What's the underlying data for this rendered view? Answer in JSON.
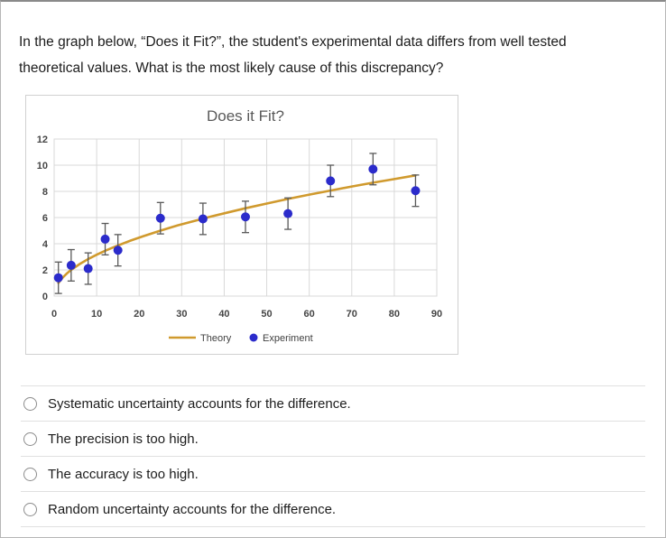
{
  "question": {
    "text": "In the graph below, “Does it Fit?”, the student's experimental data differs from well tested theoretical values. What is the most likely cause of this discrepancy?"
  },
  "chart_data": {
    "type": "scatter",
    "title": "Does it Fit?",
    "xlabel": "",
    "ylabel": "",
    "xlim": [
      0,
      90
    ],
    "ylim": [
      0,
      12
    ],
    "x_ticks": [
      0,
      10,
      20,
      30,
      40,
      50,
      60,
      70,
      80,
      90
    ],
    "y_ticks": [
      0,
      2,
      4,
      6,
      8,
      10,
      12
    ],
    "grid": true,
    "legend_position": "bottom",
    "colors": {
      "grid": "#d9d9d9",
      "axis_text": "#454545",
      "title_text": "#595959",
      "error_bar": "#595959",
      "theory": "#d09a2e",
      "experiment": "#2b2bcb"
    },
    "series": [
      {
        "name": "Theory",
        "type": "line",
        "color": "#d09a2e",
        "x": [
          1,
          2,
          3,
          4,
          6,
          8,
          10,
          12,
          15,
          18,
          21,
          25,
          29,
          33,
          37,
          41,
          45,
          50,
          55,
          60,
          65,
          70,
          75,
          80,
          85
        ],
        "y": [
          1.0,
          1.41,
          1.73,
          2.0,
          2.45,
          2.83,
          3.16,
          3.46,
          3.87,
          4.24,
          4.58,
          5.0,
          5.39,
          5.74,
          6.08,
          6.4,
          6.71,
          7.07,
          7.42,
          7.75,
          8.06,
          8.37,
          8.66,
          8.94,
          9.22
        ]
      },
      {
        "name": "Experiment",
        "type": "scatter",
        "color": "#2b2bcb",
        "error": 1.2,
        "x": [
          1,
          4,
          8,
          12,
          15,
          25,
          35,
          45,
          55,
          65,
          75,
          85
        ],
        "y": [
          1.4,
          2.35,
          2.1,
          4.35,
          3.5,
          5.95,
          5.9,
          6.05,
          6.3,
          8.8,
          9.7,
          8.05
        ]
      }
    ]
  },
  "options": [
    {
      "label": "Systematic uncertainty accounts for the difference.",
      "selected": false
    },
    {
      "label": "The precision is too high.",
      "selected": false
    },
    {
      "label": "The accuracy is too high.",
      "selected": false
    },
    {
      "label": "Random uncertainty accounts for the difference.",
      "selected": false
    }
  ]
}
